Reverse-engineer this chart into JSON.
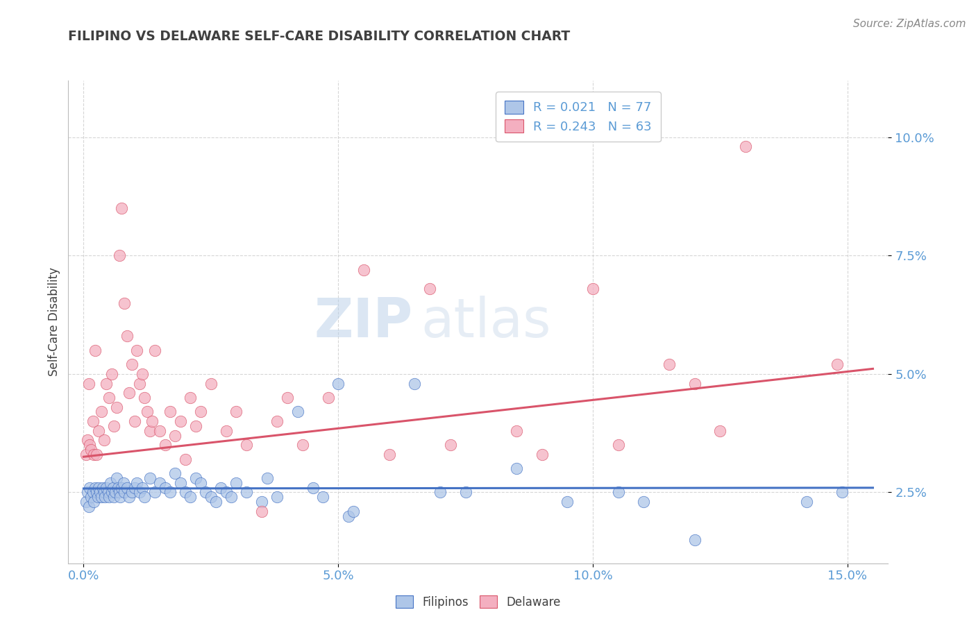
{
  "title": "FILIPINO VS DELAWARE SELF-CARE DISABILITY CORRELATION CHART",
  "source": "Source: ZipAtlas.com",
  "ylabel": "Self-Care Disability",
  "x_ticks": [
    0.0,
    5.0,
    10.0,
    15.0
  ],
  "y_ticks": [
    2.5,
    5.0,
    7.5,
    10.0
  ],
  "y_tick_labels": [
    "2.5%",
    "5.0%",
    "7.5%",
    "10.0%"
  ],
  "xlim": [
    -0.3,
    15.8
  ],
  "ylim": [
    1.0,
    11.2
  ],
  "legend_labels": [
    "Filipinos",
    "Delaware"
  ],
  "legend_R": [
    0.021,
    0.243
  ],
  "legend_N": [
    77,
    63
  ],
  "blue_color": "#aec6e8",
  "pink_color": "#f4afc0",
  "blue_line_color": "#4472c4",
  "pink_line_color": "#d9546a",
  "blue_scatter": [
    [
      0.05,
      2.3
    ],
    [
      0.08,
      2.5
    ],
    [
      0.1,
      2.2
    ],
    [
      0.12,
      2.6
    ],
    [
      0.15,
      2.4
    ],
    [
      0.18,
      2.5
    ],
    [
      0.2,
      2.3
    ],
    [
      0.22,
      2.6
    ],
    [
      0.25,
      2.5
    ],
    [
      0.28,
      2.4
    ],
    [
      0.3,
      2.6
    ],
    [
      0.32,
      2.5
    ],
    [
      0.35,
      2.4
    ],
    [
      0.38,
      2.6
    ],
    [
      0.4,
      2.5
    ],
    [
      0.42,
      2.4
    ],
    [
      0.45,
      2.6
    ],
    [
      0.48,
      2.5
    ],
    [
      0.5,
      2.4
    ],
    [
      0.52,
      2.7
    ],
    [
      0.55,
      2.5
    ],
    [
      0.58,
      2.6
    ],
    [
      0.6,
      2.4
    ],
    [
      0.62,
      2.5
    ],
    [
      0.65,
      2.8
    ],
    [
      0.68,
      2.6
    ],
    [
      0.7,
      2.5
    ],
    [
      0.72,
      2.4
    ],
    [
      0.75,
      2.6
    ],
    [
      0.78,
      2.7
    ],
    [
      0.8,
      2.5
    ],
    [
      0.85,
      2.6
    ],
    [
      0.9,
      2.4
    ],
    [
      0.95,
      2.5
    ],
    [
      1.0,
      2.6
    ],
    [
      1.05,
      2.7
    ],
    [
      1.1,
      2.5
    ],
    [
      1.15,
      2.6
    ],
    [
      1.2,
      2.4
    ],
    [
      1.3,
      2.8
    ],
    [
      1.4,
      2.5
    ],
    [
      1.5,
      2.7
    ],
    [
      1.6,
      2.6
    ],
    [
      1.7,
      2.5
    ],
    [
      1.8,
      2.9
    ],
    [
      1.9,
      2.7
    ],
    [
      2.0,
      2.5
    ],
    [
      2.1,
      2.4
    ],
    [
      2.2,
      2.8
    ],
    [
      2.3,
      2.7
    ],
    [
      2.4,
      2.5
    ],
    [
      2.5,
      2.4
    ],
    [
      2.6,
      2.3
    ],
    [
      2.7,
      2.6
    ],
    [
      2.8,
      2.5
    ],
    [
      2.9,
      2.4
    ],
    [
      3.0,
      2.7
    ],
    [
      3.2,
      2.5
    ],
    [
      3.5,
      2.3
    ],
    [
      3.6,
      2.8
    ],
    [
      3.8,
      2.4
    ],
    [
      4.2,
      4.2
    ],
    [
      4.5,
      2.6
    ],
    [
      4.7,
      2.4
    ],
    [
      5.0,
      4.8
    ],
    [
      5.2,
      2.0
    ],
    [
      5.3,
      2.1
    ],
    [
      6.5,
      4.8
    ],
    [
      7.0,
      2.5
    ],
    [
      7.5,
      2.5
    ],
    [
      8.5,
      3.0
    ],
    [
      9.5,
      2.3
    ],
    [
      10.5,
      2.5
    ],
    [
      11.0,
      2.3
    ],
    [
      12.0,
      1.5
    ],
    [
      14.2,
      2.3
    ],
    [
      14.9,
      2.5
    ]
  ],
  "pink_scatter": [
    [
      0.05,
      3.3
    ],
    [
      0.08,
      3.6
    ],
    [
      0.1,
      4.8
    ],
    [
      0.12,
      3.5
    ],
    [
      0.15,
      3.4
    ],
    [
      0.18,
      4.0
    ],
    [
      0.2,
      3.3
    ],
    [
      0.22,
      5.5
    ],
    [
      0.25,
      3.3
    ],
    [
      0.3,
      3.8
    ],
    [
      0.35,
      4.2
    ],
    [
      0.4,
      3.6
    ],
    [
      0.45,
      4.8
    ],
    [
      0.5,
      4.5
    ],
    [
      0.55,
      5.0
    ],
    [
      0.6,
      3.9
    ],
    [
      0.65,
      4.3
    ],
    [
      0.7,
      7.5
    ],
    [
      0.75,
      8.5
    ],
    [
      0.8,
      6.5
    ],
    [
      0.85,
      5.8
    ],
    [
      0.9,
      4.6
    ],
    [
      0.95,
      5.2
    ],
    [
      1.0,
      4.0
    ],
    [
      1.05,
      5.5
    ],
    [
      1.1,
      4.8
    ],
    [
      1.15,
      5.0
    ],
    [
      1.2,
      4.5
    ],
    [
      1.25,
      4.2
    ],
    [
      1.3,
      3.8
    ],
    [
      1.35,
      4.0
    ],
    [
      1.4,
      5.5
    ],
    [
      1.5,
      3.8
    ],
    [
      1.6,
      3.5
    ],
    [
      1.7,
      4.2
    ],
    [
      1.8,
      3.7
    ],
    [
      1.9,
      4.0
    ],
    [
      2.0,
      3.2
    ],
    [
      2.1,
      4.5
    ],
    [
      2.2,
      3.9
    ],
    [
      2.3,
      4.2
    ],
    [
      2.5,
      4.8
    ],
    [
      2.8,
      3.8
    ],
    [
      3.0,
      4.2
    ],
    [
      3.2,
      3.5
    ],
    [
      3.5,
      2.1
    ],
    [
      3.8,
      4.0
    ],
    [
      4.0,
      4.5
    ],
    [
      4.3,
      3.5
    ],
    [
      4.8,
      4.5
    ],
    [
      5.5,
      7.2
    ],
    [
      6.0,
      3.3
    ],
    [
      6.8,
      6.8
    ],
    [
      7.2,
      3.5
    ],
    [
      8.5,
      3.8
    ],
    [
      9.0,
      3.3
    ],
    [
      10.0,
      6.8
    ],
    [
      10.5,
      3.5
    ],
    [
      11.5,
      5.2
    ],
    [
      12.0,
      4.8
    ],
    [
      12.5,
      3.8
    ],
    [
      13.0,
      9.8
    ],
    [
      14.8,
      5.2
    ]
  ],
  "blue_line_x": [
    0.0,
    15.5
  ],
  "blue_line_slope": 0.001,
  "blue_line_intercept": 2.58,
  "pink_line_x": [
    0.0,
    15.5
  ],
  "pink_line_slope": 0.12,
  "pink_line_intercept": 3.25,
  "watermark_zip": "ZIP",
  "watermark_atlas": "atlas",
  "background_color": "#ffffff",
  "grid_color": "#cccccc",
  "title_color": "#404040",
  "tick_label_color": "#5b9bd5",
  "legend_R_color": "#5b9bd5",
  "source_color": "#888888"
}
